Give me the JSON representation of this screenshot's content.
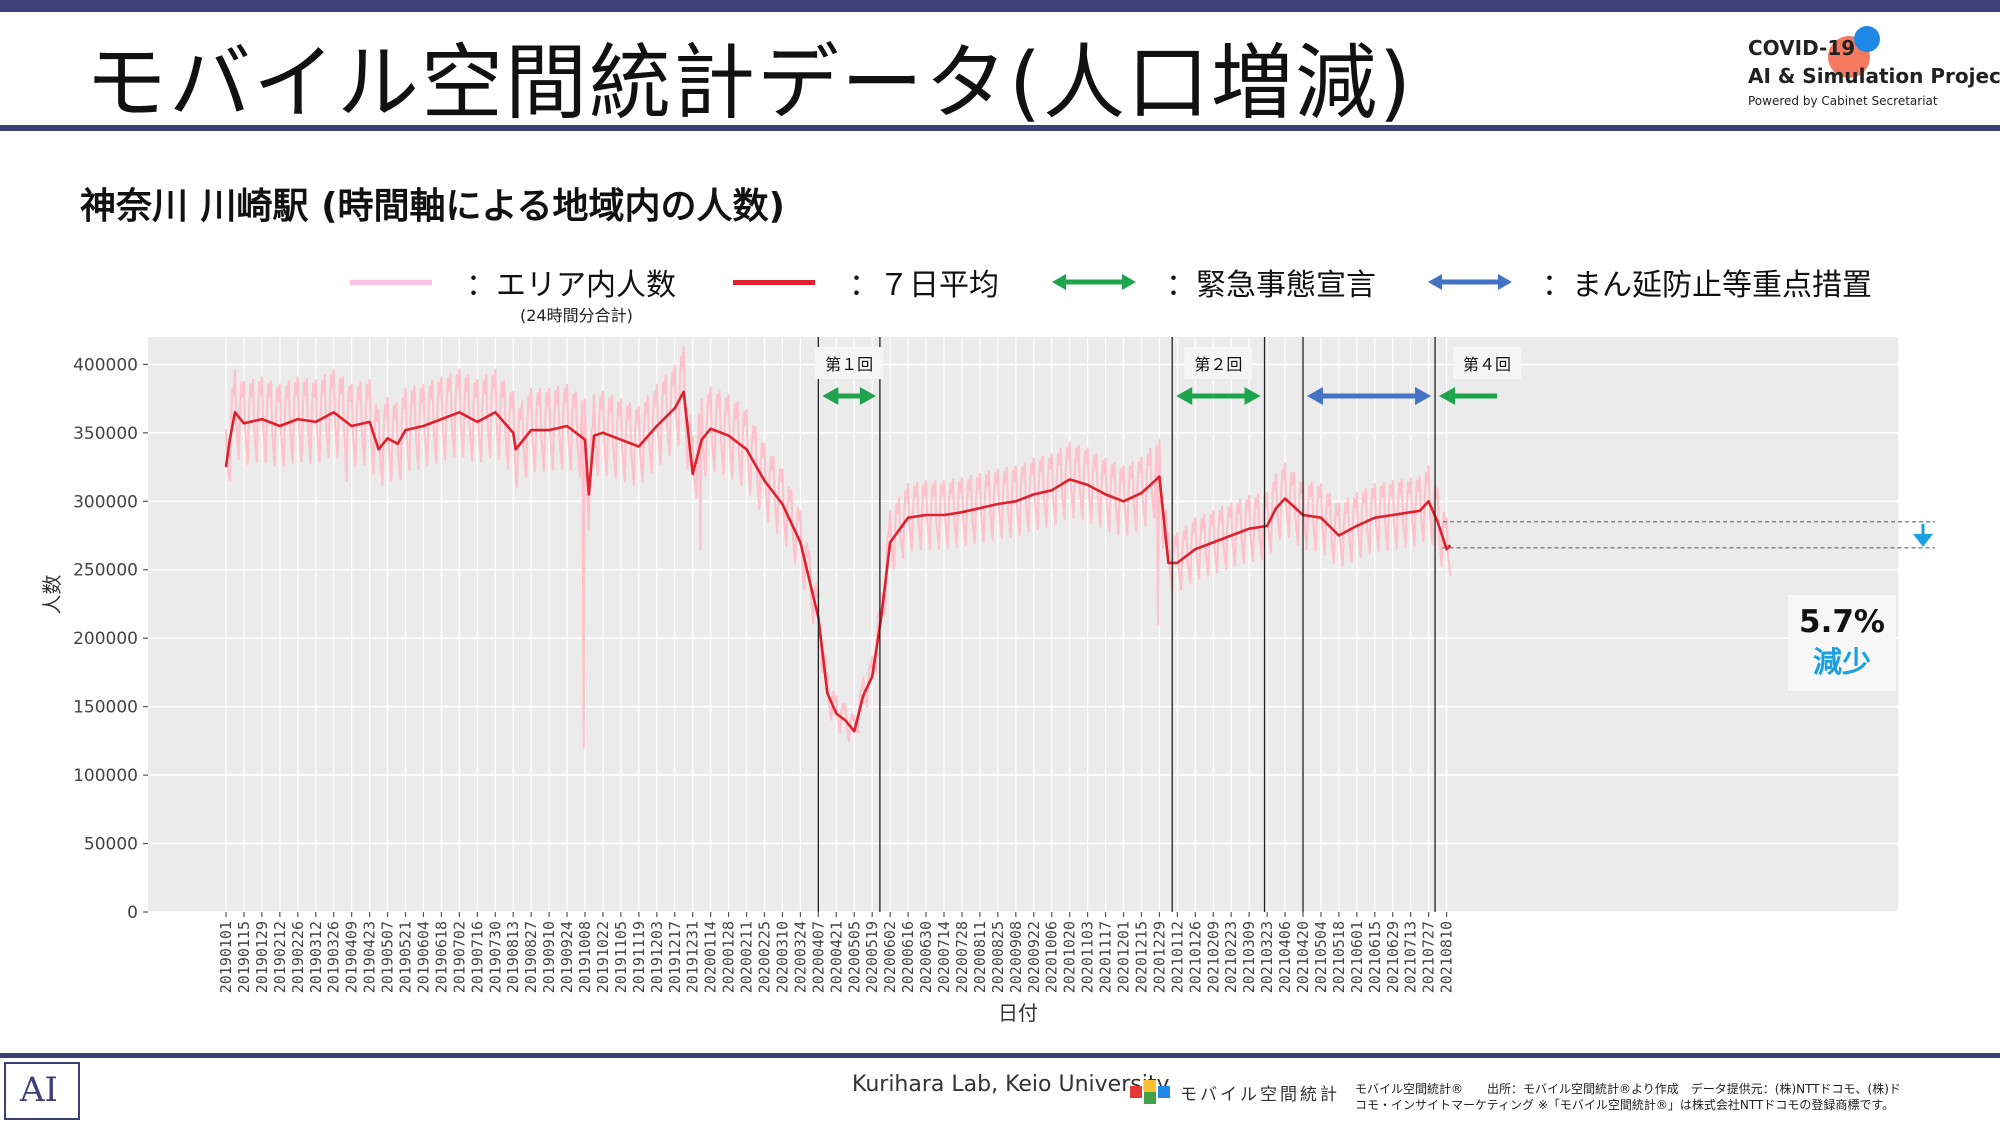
{
  "slide": {
    "title": "モバイル空間統計データ(人口増減)",
    "logo": {
      "line1": "COVID-19",
      "line2": "AI & Simulation Project",
      "line3": "Powered by Cabinet Secretariat"
    },
    "subtitle": "神奈川 川崎駅 (時間軸による地域内の人数)"
  },
  "legend": {
    "area_population": "：エリア内人数",
    "area_population_note": "(24時間分合計)",
    "seven_day_avg": "：７日平均",
    "emergency": "：緊急事態宣言",
    "quasi_emergency": "：まん延防止等重点措置"
  },
  "colors": {
    "raw": "#ffc0cb",
    "avg": "#e0202a",
    "emergency": "#1ea44c",
    "quasi": "#4472c4",
    "accent": "#1aa0e0",
    "frame": "#3d3e7a"
  },
  "footer": {
    "credit": "Kurihara Lab, Keio University",
    "app": "モバイル空間統計",
    "source1": "モバイル空間統計®　　出所：モバイル空間統計®より作成　データ提供元：(株)NTTドコモ、(株)ド",
    "source2": "コモ・インサイトマーケティング ※「モバイル空間統計®」は株式会社NTTドコモの登録商標です。"
  },
  "chart_data": {
    "type": "line",
    "xlabel": "日付",
    "ylabel": "人数",
    "ylim": [
      0,
      420000
    ],
    "yticks": [
      0,
      50000,
      100000,
      150000,
      200000,
      250000,
      300000,
      350000,
      400000
    ],
    "x_tick_labels": [
      "20190101",
      "20190115",
      "20190129",
      "20190212",
      "20190226",
      "20190312",
      "20190326",
      "20190409",
      "20190423",
      "20190507",
      "20190521",
      "20190604",
      "20190618",
      "20190702",
      "20190716",
      "20190730",
      "20190813",
      "20190827",
      "20190910",
      "20190924",
      "20191008",
      "20191022",
      "20191105",
      "20191119",
      "20191203",
      "20191217",
      "20191231",
      "20200114",
      "20200128",
      "20200211",
      "20200225",
      "20200310",
      "20200324",
      "20200407",
      "20200421",
      "20200505",
      "20200519",
      "20200602",
      "20200616",
      "20200630",
      "20200714",
      "20200728",
      "20200811",
      "20200825",
      "20200908",
      "20200922",
      "20201006",
      "20201020",
      "20201103",
      "20201117",
      "20201201",
      "20201215",
      "20201229",
      "20210112",
      "20210126",
      "20210209",
      "20210223",
      "20210309",
      "20210323",
      "20210406",
      "20210420",
      "20210504",
      "20210518",
      "20210601",
      "20210615",
      "20210629",
      "20210713",
      "20210727",
      "20210810"
    ],
    "series": [
      {
        "name": "：７日平均",
        "x": [
          "20190101",
          "20190104",
          "20190108",
          "20190115",
          "20190129",
          "20190212",
          "20190226",
          "20190312",
          "20190326",
          "20190409",
          "20190423",
          "20190430",
          "20190507",
          "20190515",
          "20190521",
          "20190604",
          "20190618",
          "20190702",
          "20190716",
          "20190730",
          "20190813",
          "20190815",
          "20190827",
          "20190910",
          "20190924",
          "20191001",
          "20191008",
          "20191011",
          "20191015",
          "20191022",
          "20191105",
          "20191119",
          "20191203",
          "20191217",
          "20191224",
          "20191231",
          "20200107",
          "20200114",
          "20200128",
          "20200211",
          "20200225",
          "20200310",
          "20200324",
          "20200407",
          "20200414",
          "20200421",
          "20200428",
          "20200505",
          "20200512",
          "20200519",
          "20200526",
          "20200602",
          "20200616",
          "20200630",
          "20200714",
          "20200728",
          "20200811",
          "20200825",
          "20200908",
          "20200922",
          "20201006",
          "20201020",
          "20201103",
          "20201117",
          "20201201",
          "20201215",
          "20201222",
          "20201229",
          "20210105",
          "20210112",
          "20210126",
          "20210209",
          "20210223",
          "20210309",
          "20210323",
          "20210330",
          "20210406",
          "20210420",
          "20210504",
          "20210518",
          "20210601",
          "20210615",
          "20210629",
          "20210713",
          "20210720",
          "20210727",
          "20210803",
          "20210810",
          "20210813"
        ],
        "y": [
          325000,
          345000,
          365000,
          357000,
          360000,
          355000,
          360000,
          358000,
          365000,
          355000,
          358000,
          338000,
          346000,
          342000,
          352000,
          355000,
          360000,
          365000,
          358000,
          365000,
          350000,
          338000,
          352000,
          352000,
          355000,
          350000,
          345000,
          305000,
          348000,
          350000,
          345000,
          340000,
          355000,
          368000,
          380000,
          320000,
          345000,
          353000,
          348000,
          338000,
          315000,
          298000,
          270000,
          215000,
          160000,
          145000,
          140000,
          132000,
          158000,
          172000,
          215000,
          270000,
          288000,
          290000,
          290000,
          292000,
          295000,
          298000,
          300000,
          305000,
          308000,
          316000,
          312000,
          305000,
          300000,
          306000,
          312000,
          318000,
          255000,
          255000,
          265000,
          270000,
          275000,
          280000,
          282000,
          295000,
          302000,
          290000,
          288000,
          275000,
          282000,
          288000,
          290000,
          292000,
          293000,
          300000,
          285000,
          265000,
          268000
        ]
      }
    ],
    "annotations": {
      "periods": [
        {
          "label": "第１回",
          "type": "緊急事態宣言",
          "start": "20200407",
          "end": "20200525"
        },
        {
          "label": "第２回",
          "type": "緊急事態宣言",
          "start": "20210108",
          "end": "20210321"
        },
        {
          "label": "",
          "type": "まん延防止等重点措置",
          "start": "20210420",
          "end": "20210801"
        },
        {
          "label": "第４回",
          "type": "緊急事態宣言",
          "start": "20210801",
          "end": ""
        }
      ],
      "change": {
        "value": "5.7%",
        "direction": "減少"
      }
    }
  }
}
